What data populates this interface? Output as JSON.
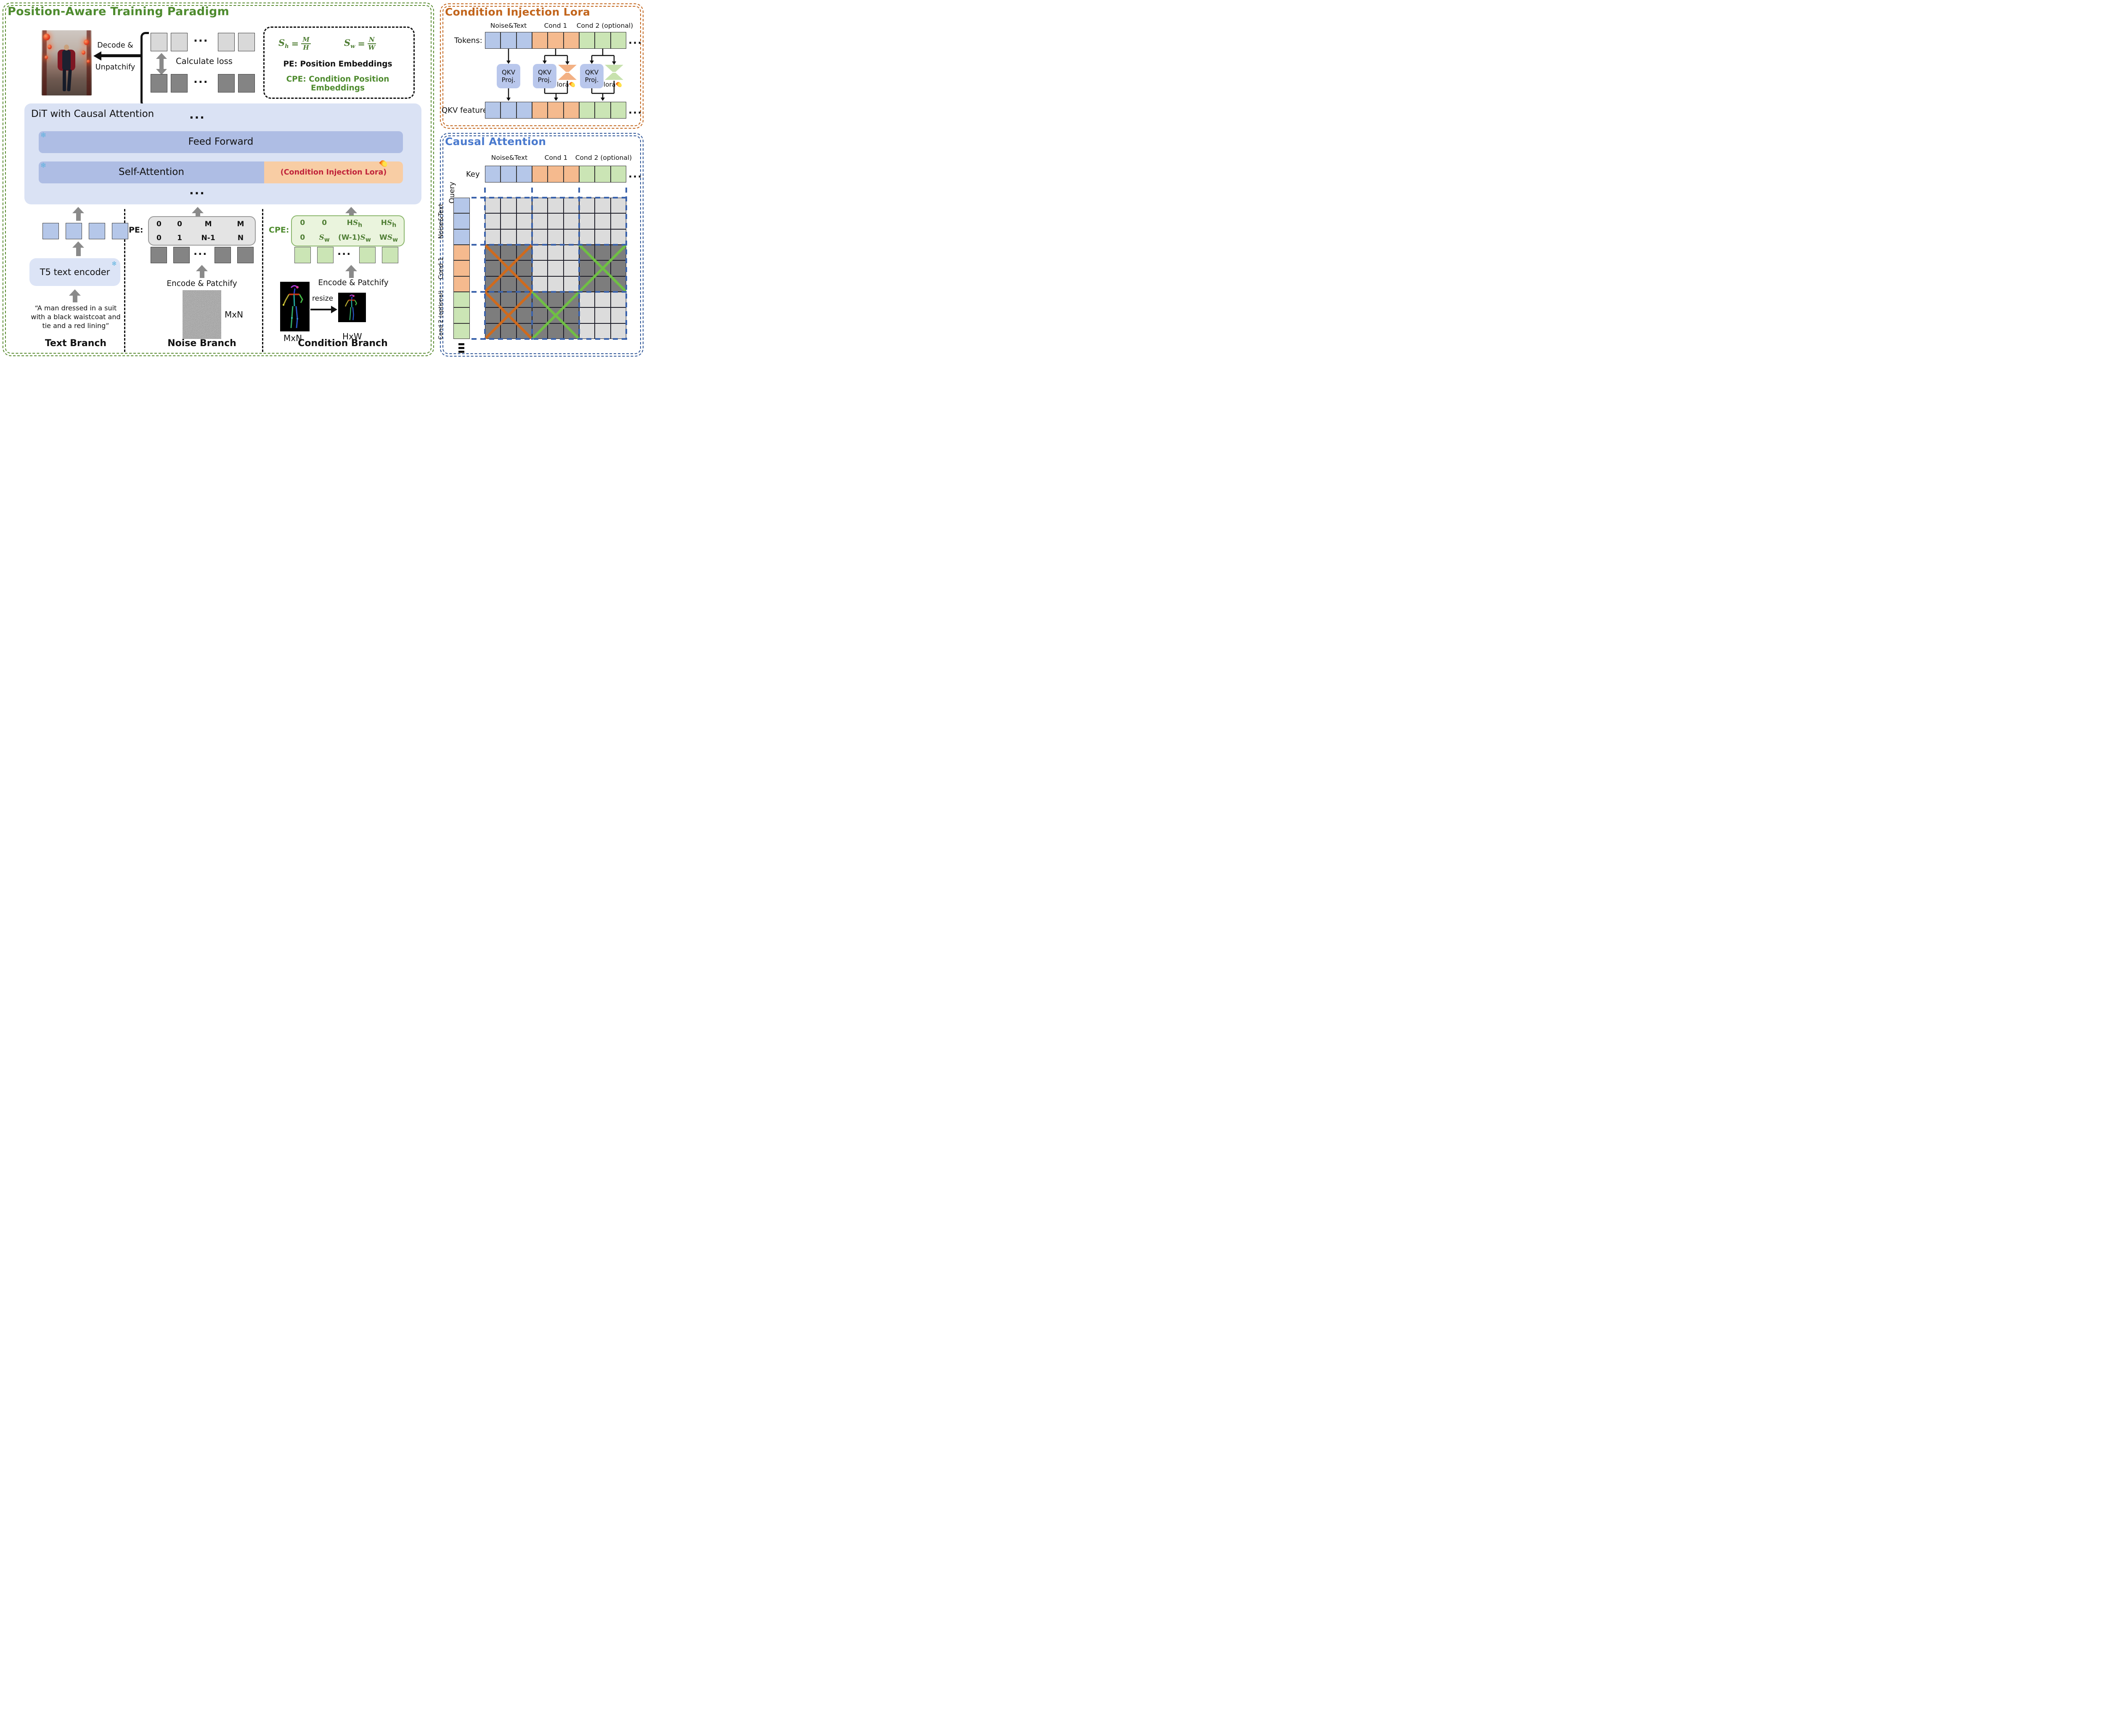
{
  "misc": {
    "dots": "...",
    "snowflake": "❄"
  },
  "colors": {
    "green_title": "#4e8b2e",
    "orange_title": "#c2651c",
    "blue_title": "#4a7ace",
    "red_text": "#c0233a",
    "cell_blue": "#b5c7e9",
    "cell_orange": "#f5ba8e",
    "cell_green": "#cbe5b5",
    "patch_light": "#d9d9d9",
    "patch_dark": "#848484",
    "mask_light": "#dcdcdc",
    "mask_dark": "#7d7d7d",
    "x_orange": "#cf6a1d",
    "x_green": "#6fbf44",
    "dash_blue": "#3a62ab"
  },
  "token_groups": [
    "blue",
    "orange",
    "green"
  ],
  "left_panel": {
    "title": "Position-Aware Training Paradigm",
    "decode_line1": "Decode &",
    "decode_line2": "Unpatchify",
    "calc_loss": "Calculate loss",
    "formula_box": {
      "formulas": [
        {
          "lhs": "S",
          "lhs_sub": "h",
          "num": "M",
          "den": "H"
        },
        {
          "lhs": "S",
          "lhs_sub": "w",
          "num": "N",
          "den": "W"
        }
      ],
      "pe_def": "PE: Position Embeddings",
      "cpe_def": "CPE: Condition Position Embeddings"
    },
    "dit": {
      "title": "DiT with Causal Attention",
      "feed_forward": "Feed Forward",
      "self_attention": "Self-Attention",
      "lora": "(Condition Injection Lora)"
    },
    "branches": {
      "text": {
        "encoder": "T5 text encoder",
        "prompt": [
          "“A man dressed in a suit",
          "with a black waistcoat and",
          "tie and a red lining”"
        ],
        "label": "Text Branch"
      },
      "noise": {
        "pe_label": "PE:",
        "pe_row1": [
          "0",
          "0",
          "M",
          "M"
        ],
        "pe_row2": [
          "0",
          "1",
          "N-1",
          "N"
        ],
        "encode": "Encode & Patchify",
        "size": "MxN",
        "label": "Noise Branch"
      },
      "condition": {
        "cpe_label": "CPE:",
        "cpe_row1": [
          {
            "pre": "0"
          },
          {
            "pre": "0"
          },
          {
            "pre": "H",
            "s": "S",
            "sub": "h"
          },
          {
            "pre": "H",
            "s": "S",
            "sub": "h"
          }
        ],
        "cpe_row2": [
          {
            "pre": "0"
          },
          {
            "pre": "",
            "s": "S",
            "sub": "w"
          },
          {
            "pre": "(W-1)",
            "s": "S",
            "sub": "w"
          },
          {
            "pre": "W",
            "s": "S",
            "sub": "w"
          }
        ],
        "encode": "Encode & Patchify",
        "resize": "resize",
        "size_src": "MxN",
        "size_dst": "HxW",
        "label": "Condition Branch"
      }
    }
  },
  "lora_panel": {
    "title": "Condition Injection Lora",
    "col_labels": [
      "Noise&Text",
      "Cond 1",
      "Cond 2 (optional)"
    ],
    "tokens_label": "Tokens:",
    "features_label": "QKV features:",
    "qkv_line1": "QKV",
    "qkv_line2": "Proj.",
    "lora_label": "lora"
  },
  "attn_panel": {
    "title": "Causal Attention",
    "col_labels": [
      "Noise&Text",
      "Cond 1",
      "Cond 2 (optional)"
    ],
    "key_label": "Key",
    "query_label": "Query",
    "row_labels": [
      "Noise&Text",
      "Cond 1",
      "Cond 2 (optional)"
    ],
    "mask_blocks": [
      [
        "light",
        "light",
        "light"
      ],
      [
        "orange",
        "light",
        "green"
      ],
      [
        "orange",
        "green",
        "light"
      ]
    ]
  }
}
